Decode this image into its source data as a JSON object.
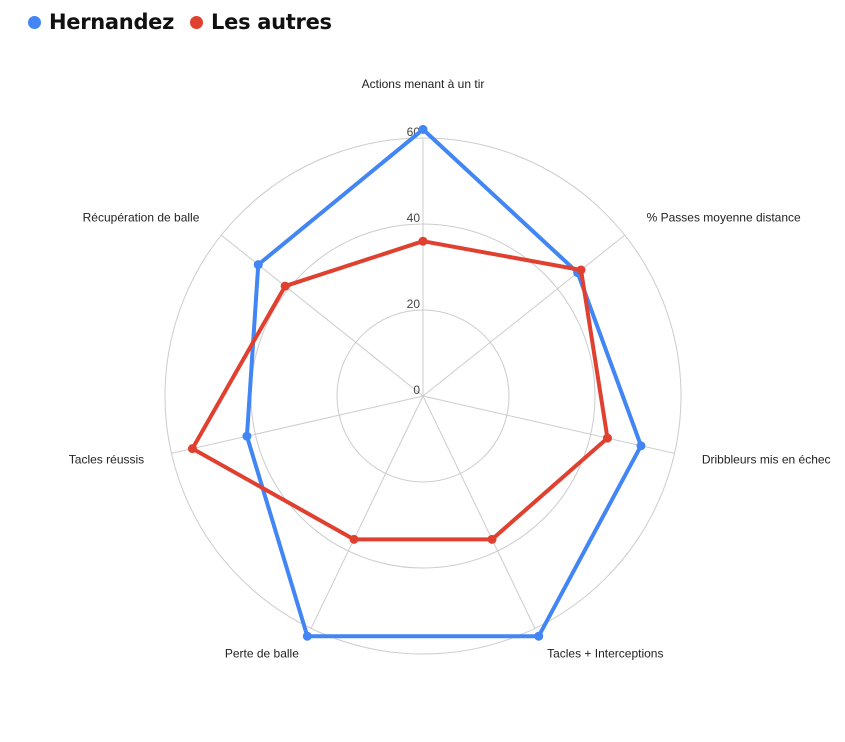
{
  "chart_data": {
    "type": "radar",
    "categories": [
      "Actions menant à un tir",
      "% Passes moyenne distance",
      "Dribbleurs mis en échec",
      "Tacles + Interceptions",
      "Perte de balle",
      "Tacles réussis",
      "Récupération de balle"
    ],
    "series": [
      {
        "name": "Hernandez",
        "color": "#4285f4",
        "values": [
          62,
          46,
          52,
          62,
          62,
          42,
          49
        ]
      },
      {
        "name": "Les autres",
        "color": "#e0402f",
        "values": [
          36,
          47,
          44,
          37,
          37,
          55,
          41
        ]
      }
    ],
    "radial_ticks": [
      "0",
      "20",
      "40",
      "60"
    ],
    "range": [
      0,
      60
    ],
    "grid": true,
    "legend_position": "top-left"
  }
}
